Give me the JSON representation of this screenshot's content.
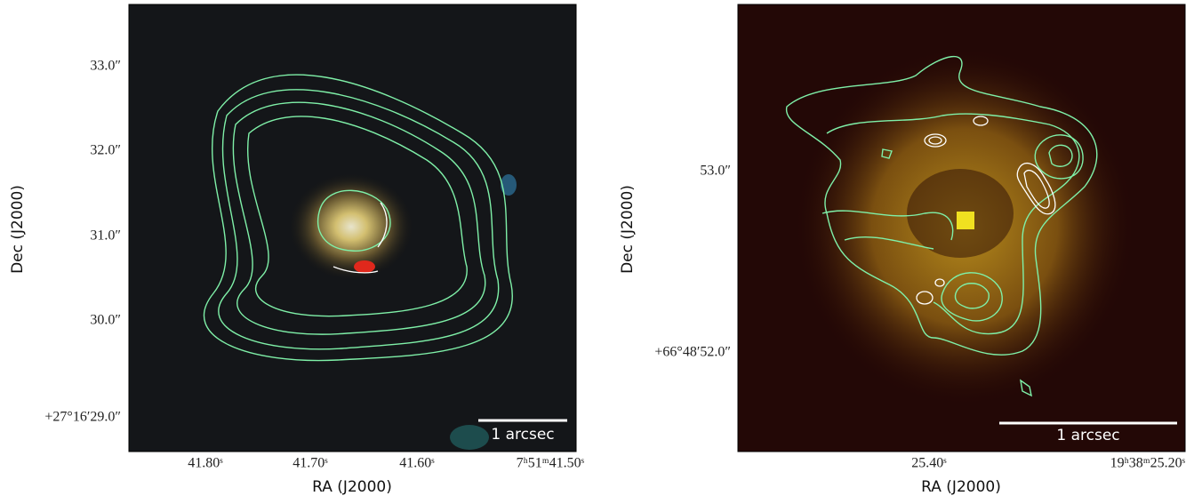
{
  "panels": [
    {
      "x_label": "RA (J2000)",
      "y_label": "Dec (J2000)",
      "x_ticks": [
        "41.80ˢ",
        "41.70ˢ",
        "41.60ˢ",
        "7ʰ51ᵐ41.50ˢ"
      ],
      "y_ticks": [
        "33.0″",
        "32.0″",
        "31.0″",
        "30.0″",
        "+27°16′29.0″"
      ],
      "scale_bar": "1 arcsec"
    },
    {
      "x_label": "RA (J2000)",
      "y_label": "Dec (J2000)",
      "x_ticks": [
        "25.40ˢ",
        "19ʰ38ᵐ25.20ˢ"
      ],
      "y_ticks": [
        "53.0″",
        "+66°48′52.0″"
      ],
      "scale_bar": "1 arcsec"
    }
  ]
}
